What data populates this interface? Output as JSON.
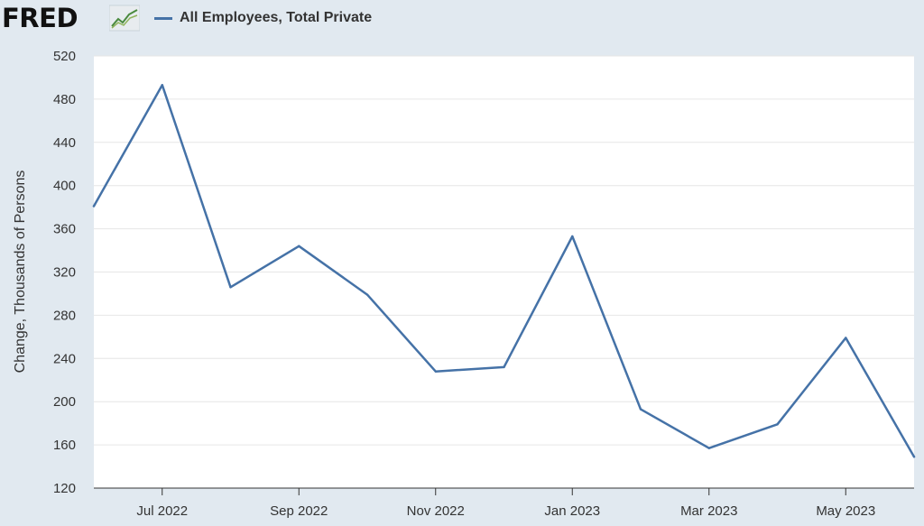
{
  "header": {
    "logo_text": "FRED",
    "logo_icon": "trend-chart-icon",
    "legend_label": "All Employees, Total Private",
    "legend_color": "#4572a7"
  },
  "chart_data": {
    "type": "line",
    "title": "",
    "xlabel": "",
    "ylabel": "Change, Thousands of Persons",
    "ylim": [
      120,
      520
    ],
    "yticks": [
      120,
      160,
      200,
      240,
      280,
      320,
      360,
      400,
      440,
      480,
      520
    ],
    "xticks": [
      "Jul 2022",
      "Sep 2022",
      "Nov 2022",
      "Jan 2023",
      "Mar 2023",
      "May 2023"
    ],
    "grid": true,
    "legend_position": "top-left",
    "series": [
      {
        "name": "All Employees, Total Private",
        "color": "#4572a7",
        "x": [
          "2022-06",
          "2022-07",
          "2022-08",
          "2022-09",
          "2022-10",
          "2022-11",
          "2022-12",
          "2023-01",
          "2023-02",
          "2023-03",
          "2023-04",
          "2023-05",
          "2023-06"
        ],
        "values": [
          381,
          493,
          306,
          344,
          299,
          228,
          232,
          353,
          193,
          157,
          179,
          259,
          149
        ]
      }
    ]
  }
}
